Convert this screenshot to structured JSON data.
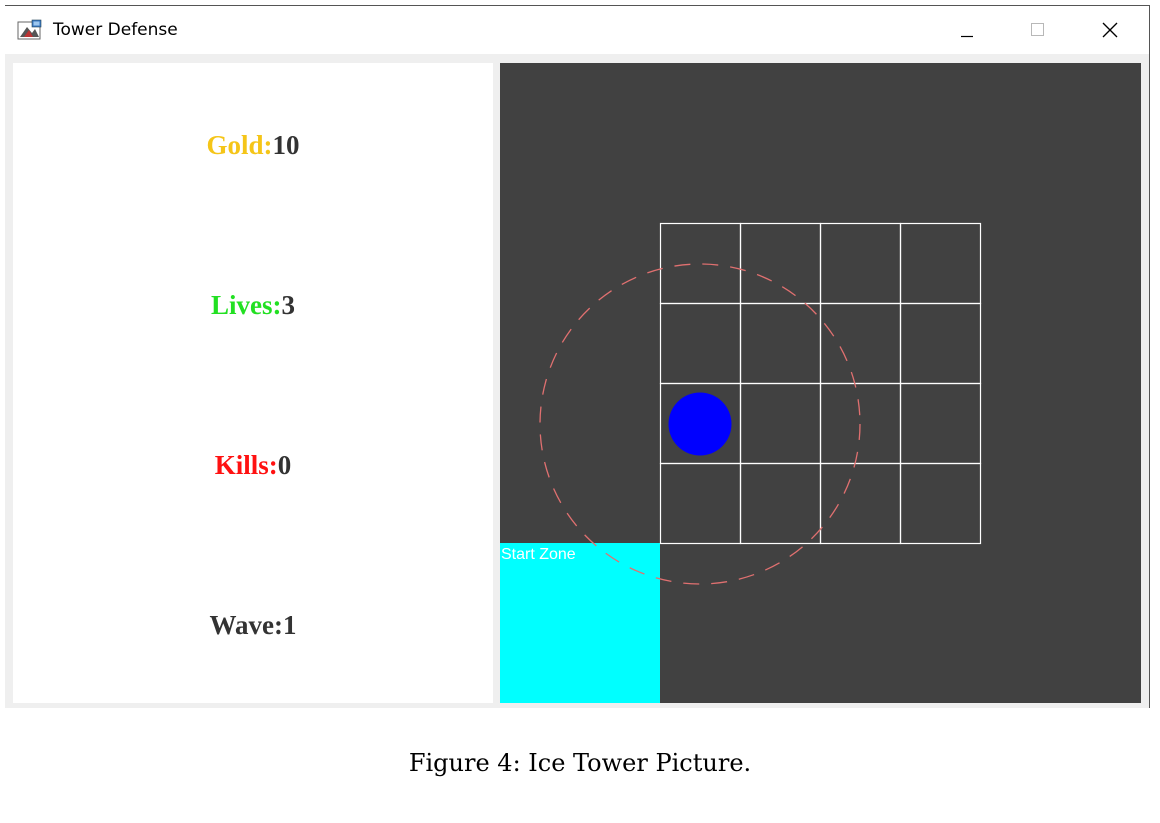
{
  "window": {
    "title": "Tower Defense",
    "app_icon": "java-cup-icon",
    "controls": {
      "minimize_icon": "minimize-icon",
      "maximize_icon": "maximize-icon",
      "close_icon": "close-icon"
    }
  },
  "stats": {
    "gold": {
      "label": "Gold:",
      "value": "10",
      "color": "#f5c518"
    },
    "lives": {
      "label": "Lives:",
      "value": "3",
      "color": "#22e022"
    },
    "kills": {
      "label": "Kills:",
      "value": "0",
      "color": "#ff1111"
    },
    "wave": {
      "label": "Wave:",
      "value": "1",
      "color": "#333333"
    }
  },
  "board": {
    "background_color": "#414141",
    "start_zone": {
      "label": "Start Zone",
      "color": "#00ffff"
    },
    "grid": {
      "rows": 4,
      "cols": 4,
      "line_color": "#ffffff"
    },
    "tower": {
      "type": "ice",
      "color": "#0000ff",
      "range_color": "#e07070"
    }
  },
  "caption": "Figure 4: Ice Tower Picture."
}
